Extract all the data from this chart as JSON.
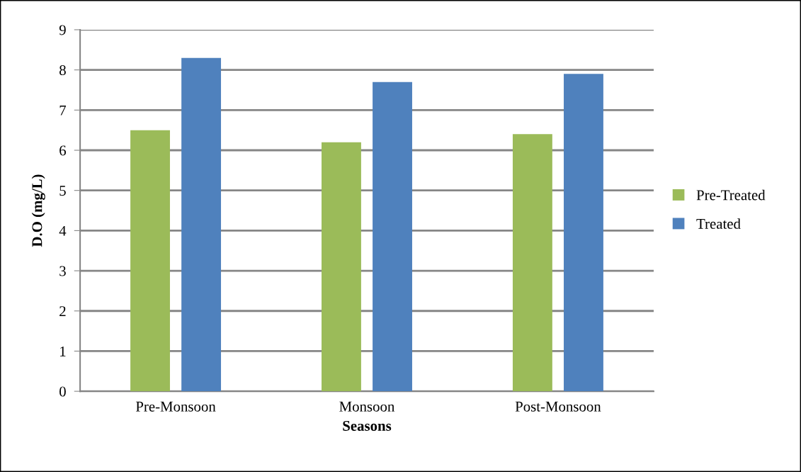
{
  "chart_data": {
    "type": "bar",
    "xlabel": "Seasons",
    "ylabel": "D.O (mg/L)",
    "categories": [
      "Pre-Monsoon",
      "Monsoon",
      "Post-Monsoon"
    ],
    "series": [
      {
        "name": "Pre-Treated",
        "color": "#9bbb59",
        "values": [
          6.5,
          6.2,
          6.4
        ]
      },
      {
        "name": "Treated",
        "color": "#4f81bd",
        "values": [
          8.3,
          7.7,
          7.9
        ]
      }
    ],
    "ylim": [
      0,
      9
    ],
    "yticks": [
      0,
      1,
      2,
      3,
      4,
      5,
      6,
      7,
      8,
      9
    ],
    "grid": "y",
    "legend": "right"
  }
}
